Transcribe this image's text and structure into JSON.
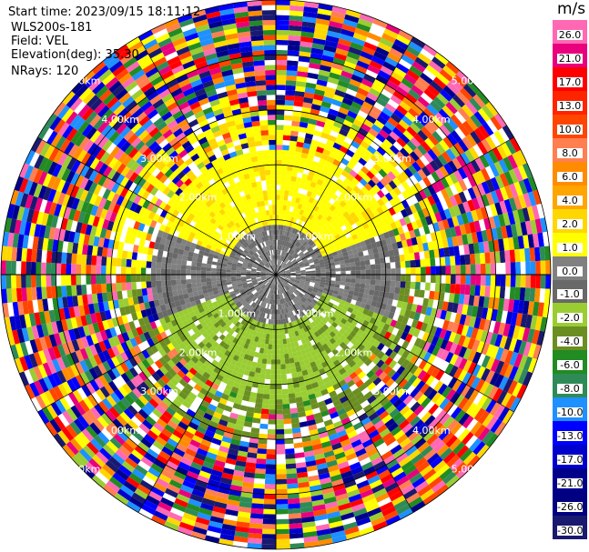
{
  "header": {
    "start_time": "Start time: 2023/09/15 18:11:12",
    "station": "WLS200s-181",
    "field": "Field: VEL",
    "elevation": "Elevation(deg): 35.30",
    "nrays": "NRays: 120"
  },
  "colorbar": {
    "unit": "m/s",
    "ticks": [
      "26.0",
      "21.0",
      "17.0",
      "13.0",
      "10.0",
      "8.0",
      "6.0",
      "4.0",
      "2.0",
      "1.0",
      "0.0",
      "-1.0",
      "-2.0",
      "-4.0",
      "-6.0",
      "-8.0",
      "-10.0",
      "-13.0",
      "-17.0",
      "-21.0",
      "-26.0",
      "-30.0"
    ],
    "colors": [
      "#ff69b4",
      "#e8007d",
      "#ff0000",
      "#ff2400",
      "#ff4500",
      "#ff7f50",
      "#ff8c00",
      "#ffa500",
      "#ffd700",
      "#ffff00",
      "#808080",
      "#696969",
      "#9acd32",
      "#6b8e23",
      "#228b22",
      "#2e8b57",
      "#1e90ff",
      "#0000ff",
      "#0000cd",
      "#00008b",
      "#000080",
      "#191970"
    ]
  },
  "range_labels": [
    "1.00km",
    "2.00km",
    "3.00km",
    "4.00km",
    "5.00km"
  ],
  "chart_data": {
    "type": "heatmap",
    "title": "",
    "field": "VEL",
    "units": "m/s",
    "elevation_deg": 35.3,
    "nrays": 120,
    "range_rings_km": [
      1,
      2,
      3,
      4,
      5
    ],
    "max_range_km": 5.0,
    "azimuth_spokes_deg": [
      0,
      30,
      60,
      90,
      120,
      150,
      180,
      210,
      240,
      270,
      300,
      330
    ],
    "velocity_levels": [
      26.0,
      21.0,
      17.0,
      13.0,
      10.0,
      8.0,
      6.0,
      4.0,
      2.0,
      1.0,
      0.0,
      -1.0,
      -2.0,
      -4.0,
      -6.0,
      -8.0,
      -10.0,
      -13.0,
      -17.0,
      -21.0,
      -26.0,
      -30.0
    ]
  }
}
